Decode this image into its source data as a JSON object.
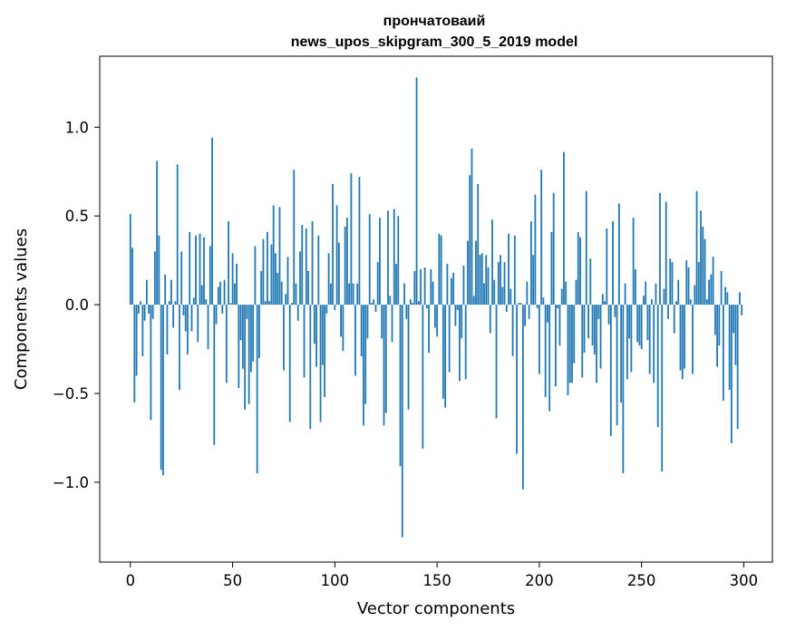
{
  "chart_data": {
    "type": "bar",
    "title_line1": "прончатоваий",
    "title_line2": "news_upos_skipgram_300_5_2019 model",
    "xlabel": "Vector components",
    "ylabel": "Components values",
    "xlim": [
      -15,
      314
    ],
    "ylim": [
      -1.45,
      1.4
    ],
    "xticks": [
      0,
      50,
      100,
      150,
      200,
      250,
      300
    ],
    "xtick_labels": [
      "0",
      "50",
      "100",
      "150",
      "200",
      "250",
      "300"
    ],
    "yticks": [
      -1.0,
      -0.5,
      0.0,
      0.5,
      1.0
    ],
    "ytick_labels": [
      "−1.0",
      "−0.5",
      "0.0",
      "0.5",
      "1.0"
    ],
    "bar_color": "#1f77b4",
    "grid": false,
    "values": [
      0.51,
      0.32,
      -0.55,
      -0.4,
      -0.05,
      0.02,
      -0.29,
      -0.09,
      0.14,
      -0.05,
      -0.65,
      -0.08,
      0.3,
      0.81,
      0.39,
      -0.93,
      -0.96,
      0.17,
      -0.28,
      0.02,
      0.14,
      -0.13,
      0.02,
      0.79,
      -0.48,
      0.3,
      -0.06,
      -0.15,
      -0.28,
      0.41,
      -0.15,
      0.04,
      0.39,
      -0.21,
      0.4,
      0.11,
      0.38,
      0.03,
      -0.25,
      0.33,
      0.94,
      -0.79,
      -0.11,
      0.1,
      0.13,
      -0.05,
      0.14,
      -0.44,
      0.47,
      0.01,
      0.29,
      0.12,
      0.23,
      -0.47,
      -0.2,
      -0.36,
      -0.59,
      -0.08,
      -0.56,
      -0.38,
      -0.32,
      0.33,
      -0.95,
      -0.3,
      0.19,
      0.37,
      0.02,
      0.41,
      0.02,
      0.34,
      0.56,
      0.29,
      0.18,
      0.55,
      0.13,
      -0.37,
      0.06,
      0.27,
      -0.66,
      0.01,
      0.76,
      0.12,
      -0.09,
      0.3,
      0.45,
      -0.41,
      0.43,
      0.19,
      -0.7,
      0.47,
      -0.22,
      -0.35,
      0.39,
      -0.66,
      -0.34,
      -0.52,
      -0.05,
      0.29,
      0.12,
      0.68,
      -0.03,
      0.56,
      0.35,
      -0.18,
      -0.26,
      0.44,
      0.49,
      0.12,
      0.74,
      0.12,
      -0.4,
      0.12,
      0.72,
      -0.29,
      -0.68,
      -0.56,
      -0.19,
      0.51,
      0.01,
      0.03,
      -0.04,
      0.24,
      0.49,
      -0.19,
      -0.68,
      -0.61,
      0.53,
      0.05,
      -0.21,
      0.54,
      0.23,
      0.5,
      -0.91,
      -1.31,
      0.12,
      -0.08,
      -0.59,
      0.03,
      0.01,
      0.19,
      1.28,
      0.02,
      0.2,
      -0.81,
      0.21,
      -0.02,
      -0.27,
      0.2,
      0.13,
      -0.13,
      -0.18,
      0.4,
      0.39,
      -0.53,
      -0.58,
      0.23,
      -0.38,
      0.15,
      0.18,
      -0.12,
      -0.03,
      -0.43,
      -0.19,
      0.22,
      -0.42,
      0.36,
      0.73,
      0.88,
      0.05,
      0.36,
      0.68,
      0.28,
      0.29,
      0.12,
      0.28,
      0.21,
      -0.16,
      0.48,
      0.14,
      -0.64,
      0.24,
      0.28,
      0.1,
      0.24,
      -0.04,
      0.4,
      0.09,
      -0.29,
      0.39,
      -0.84,
      0.01,
      0.01,
      -1.04,
      -0.12,
      0.13,
      -0.08,
      0.47,
      0.28,
      0.62,
      -0.02,
      -0.39,
      0.76,
      0.04,
      -0.52,
      -0.1,
      -0.6,
      0.41,
      0.63,
      -0.46,
      -0.02,
      -0.23,
      0.09,
      0.86,
      0.13,
      -0.51,
      -0.44,
      -0.44,
      -0.33,
      0.14,
      0.41,
      0.38,
      -0.41,
      -0.27,
      0.64,
      -0.19,
      0.26,
      -0.23,
      -0.28,
      -0.44,
      -0.08,
      -0.36,
      0.06,
      0.02,
      0.43,
      -0.11,
      -0.74,
      0.47,
      -0.07,
      -0.68,
      0.57,
      -0.55,
      -0.95,
      0.12,
      -0.42,
      -0.19,
      -0.38,
      0.49,
      0.2,
      -0.21,
      -0.23,
      -0.25,
      0.05,
      0.13,
      -0.2,
      -0.39,
      0.03,
      -0.44,
      0.12,
      -0.69,
      0.63,
      -0.94,
      0.09,
      0.58,
      -0.08,
      0.26,
      0.24,
      -0.16,
      0.02,
      0.14,
      -0.37,
      -0.42,
      -0.36,
      0.25,
      0.21,
      0.03,
      -0.39,
      0.11,
      0.64,
      0.24,
      0.53,
      0.44,
      0.37,
      0.03,
      0.14,
      0.17,
      0.27,
      -0.17,
      -0.35,
      -0.23,
      0.19,
      -0.54,
      0.1,
      0.07,
      -0.48,
      -0.78,
      -0.16,
      -0.34,
      -0.7,
      0.07,
      -0.06
    ]
  }
}
